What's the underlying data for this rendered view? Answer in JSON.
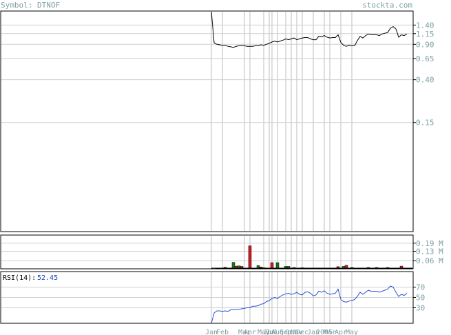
{
  "header": {
    "symbol_text": "Symbol: DTNOF",
    "site_text": "stockta.com",
    "label_color": "#7f9fa5"
  },
  "chart_data": [
    {
      "type": "line",
      "title": "",
      "ylabel": "",
      "y_scale": "log",
      "y_ticks": [
        1.4,
        1.15,
        0.9,
        0.65,
        0.4,
        0.15
      ],
      "y_tick_labels": [
        "1.40",
        "1.15",
        "0.90",
        "0.65",
        "0.40",
        "0.15"
      ],
      "y_range": [
        0.0125,
        1.9
      ],
      "grid": true,
      "series": [
        {
          "values": [
            1.9,
            0.93,
            0.9,
            0.89,
            0.88,
            0.88,
            0.86,
            0.85,
            0.84,
            0.86,
            0.87,
            0.88,
            0.87,
            0.86,
            0.86,
            0.86,
            0.87,
            0.87,
            0.89,
            0.88,
            0.9,
            0.92,
            0.95,
            0.97,
            0.95,
            0.97,
            0.99,
            1.02,
            1.0,
            1.02,
            1.04,
            1.0,
            1.02,
            1.04,
            1.05,
            1.05,
            1.02,
            1.0,
            1.0,
            1.08,
            1.07,
            1.1,
            1.06,
            1.04,
            1.05,
            1.05,
            1.12,
            0.94,
            0.88,
            0.86,
            0.88,
            0.87,
            0.87,
            0.98,
            1.08,
            1.04,
            1.1,
            1.14,
            1.12,
            1.12,
            1.12,
            1.1,
            1.14,
            1.16,
            1.18,
            1.3,
            1.35,
            1.28,
            1.06,
            1.12,
            1.1,
            1.14
          ]
        }
      ]
    },
    {
      "type": "bar",
      "title": "",
      "y_ticks": [
        0.19,
        0.13,
        0.06
      ],
      "y_tick_labels": [
        "0.19 M",
        "0.13 M",
        "0.06 M"
      ],
      "y_range": [
        0,
        0.25
      ],
      "up_color": "#1a7a1a",
      "down_color": "#d11a1a",
      "bars": [
        {
          "i": 1,
          "v": 0.004,
          "up": true
        },
        {
          "i": 3,
          "v": 0.006,
          "up": true
        },
        {
          "i": 5,
          "v": 0.012,
          "up": false
        },
        {
          "i": 8,
          "v": 0.048,
          "up": true
        },
        {
          "i": 9,
          "v": 0.02,
          "up": false
        },
        {
          "i": 10,
          "v": 0.022,
          "up": true
        },
        {
          "i": 11,
          "v": 0.018,
          "up": false
        },
        {
          "i": 14,
          "v": 0.17,
          "up": false
        },
        {
          "i": 17,
          "v": 0.024,
          "up": true
        },
        {
          "i": 18,
          "v": 0.014,
          "up": false
        },
        {
          "i": 19,
          "v": 0.008,
          "up": true
        },
        {
          "i": 22,
          "v": 0.046,
          "up": false
        },
        {
          "i": 24,
          "v": 0.046,
          "up": true
        },
        {
          "i": 27,
          "v": 0.018,
          "up": true
        },
        {
          "i": 28,
          "v": 0.018,
          "up": true
        },
        {
          "i": 30,
          "v": 0.01,
          "up": true
        },
        {
          "i": 33,
          "v": 0.008,
          "up": false
        },
        {
          "i": 36,
          "v": 0.006,
          "up": true
        },
        {
          "i": 38,
          "v": 0.006,
          "up": false
        },
        {
          "i": 40,
          "v": 0.006,
          "up": true
        },
        {
          "i": 42,
          "v": 0.006,
          "up": true
        },
        {
          "i": 46,
          "v": 0.016,
          "up": false
        },
        {
          "i": 48,
          "v": 0.018,
          "up": true
        },
        {
          "i": 49,
          "v": 0.026,
          "up": false
        },
        {
          "i": 51,
          "v": 0.01,
          "up": true
        },
        {
          "i": 54,
          "v": 0.006,
          "up": false
        },
        {
          "i": 57,
          "v": 0.01,
          "up": true
        },
        {
          "i": 60,
          "v": 0.01,
          "up": true
        },
        {
          "i": 64,
          "v": 0.01,
          "up": true
        },
        {
          "i": 69,
          "v": 0.02,
          "up": false
        }
      ]
    },
    {
      "type": "line",
      "title": "",
      "indicator_label": "RSI(14):",
      "indicator_value": "52.45",
      "value_color": "#1f3fbf",
      "y_ticks": [
        70,
        50,
        30
      ],
      "y_tick_labels": [
        "70",
        "50",
        "30"
      ],
      "y_range": [
        0,
        100
      ],
      "series": [
        {
          "color": "#2a4fd0",
          "values": [
            0,
            20,
            24,
            24,
            23,
            24,
            23,
            26,
            26,
            27,
            27,
            28,
            29,
            30,
            30,
            33,
            33,
            34,
            37,
            38,
            42,
            44,
            48,
            50,
            48,
            52,
            55,
            57,
            58,
            56,
            57,
            60,
            56,
            55,
            60,
            61,
            58,
            53,
            55,
            62,
            60,
            63,
            58,
            56,
            57,
            58,
            66,
            46,
            42,
            41,
            43,
            44,
            46,
            52,
            60,
            56,
            60,
            64,
            62,
            62,
            62,
            60,
            62,
            64,
            66,
            72,
            70,
            60,
            52,
            56,
            54,
            58
          ]
        }
      ]
    }
  ],
  "x_axis": {
    "tick_labels": [
      "Jan",
      "Feb",
      "Mar",
      "Apr",
      "May",
      "Jun",
      "Jul",
      "Aug",
      "Sep",
      "Oct",
      "Nov",
      "Dec",
      "Jan",
      "2005",
      "Mar",
      "Apr",
      "May"
    ],
    "tick_indices": [
      0,
      4,
      12,
      14,
      19,
      21,
      22,
      24,
      27,
      29,
      31,
      33,
      37,
      41,
      43,
      47,
      51
    ]
  }
}
